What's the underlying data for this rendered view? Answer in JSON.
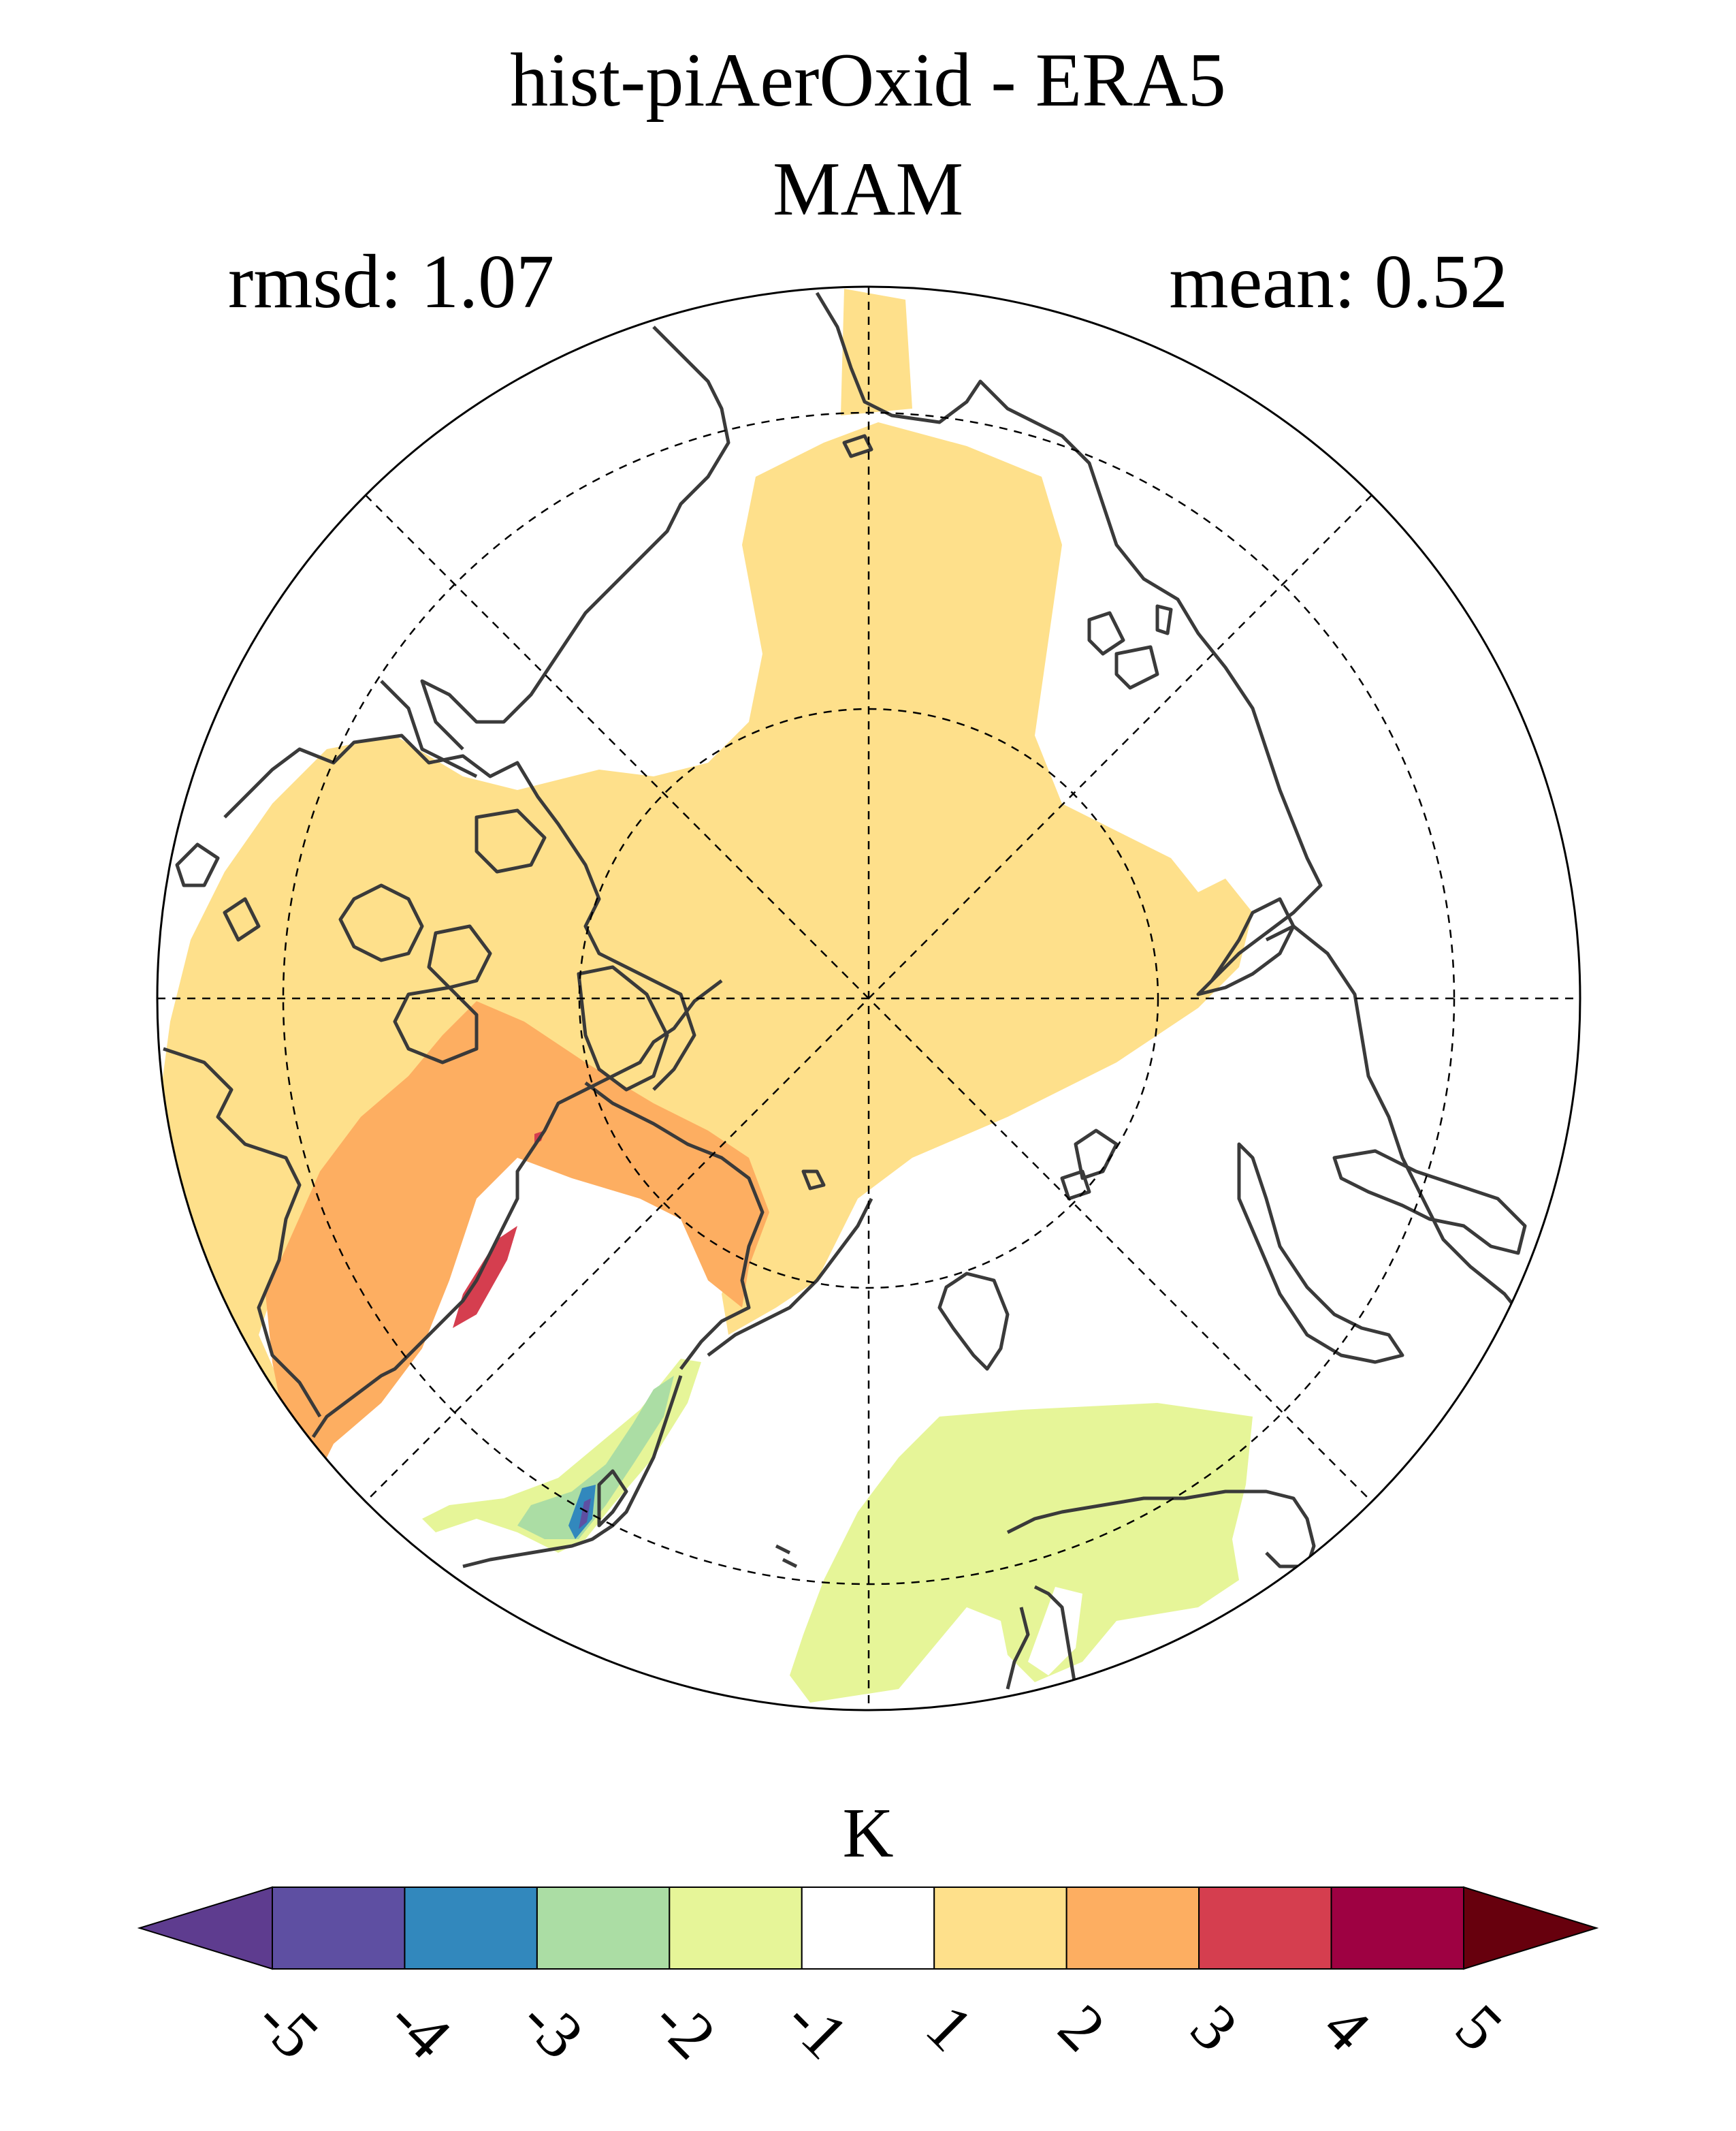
{
  "title": {
    "line1": "hist-piAerOxid - ERA5",
    "line2": "MAM",
    "rmsd": "rmsd: 1.07",
    "mean": "mean: 0.52"
  },
  "map": {
    "projection": "north polar stereographic",
    "variable_unit": "K",
    "graticule": "dashed"
  },
  "colorbar": {
    "unit": "K",
    "ticks": [
      "-5",
      "-4",
      "-3",
      "-2",
      "-1",
      "1",
      "2",
      "3",
      "4",
      "5"
    ],
    "colors": {
      "below_-5": "#5e3c8f",
      "-5_-4": "#5e4fa2",
      "-4_-3": "#3288bd",
      "-3_-2": "#abdda4",
      "-2_-1": "#e6f598",
      "-1_1": "#ffffff",
      "1_2": "#fee08b",
      "2_3": "#fdae61",
      "3_4": "#d53e4f",
      "4_5": "#9e0142",
      "above_5": "#67000d"
    }
  }
}
